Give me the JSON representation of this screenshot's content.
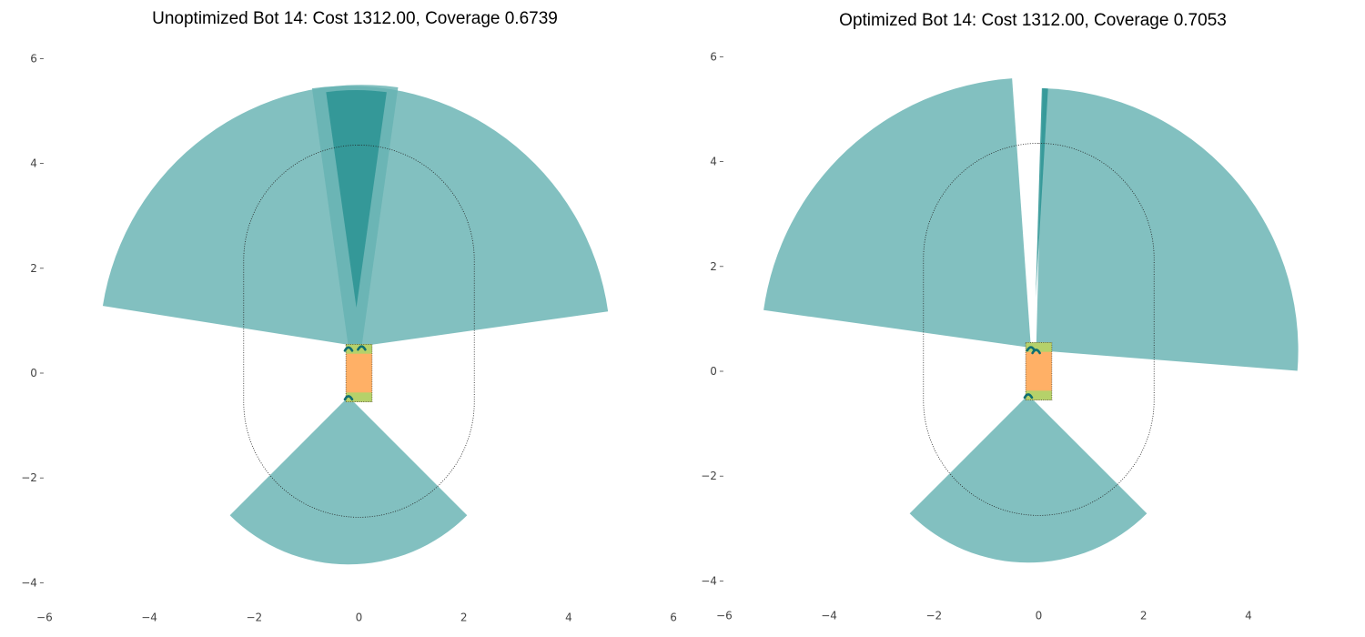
{
  "colors": {
    "sensor_fill": "#66b2b2",
    "sensor_overlap": "#2a9393",
    "body_fill": "#ffb066",
    "end_fill": "#b5d16a",
    "marker": "#0f6e72",
    "outline": "#222222",
    "tick_text": "#444444"
  },
  "chart_data": [
    {
      "type": "sensor-coverage-map",
      "title": "Unoptimized Bot 14: Cost 1312.00, Coverage 0.6739",
      "xlim": [
        -6,
        6
      ],
      "ylim": [
        -4.3,
        6.3
      ],
      "xticks": [
        -6,
        -4,
        -2,
        0,
        2,
        4,
        6
      ],
      "yticks": [
        -4,
        -2,
        0,
        2,
        4,
        6
      ],
      "tick_labels_x": [
        "−6",
        "−4",
        "−2",
        "0",
        "2",
        "4",
        "6"
      ],
      "tick_labels_y": [
        "−4",
        "−2",
        "0",
        "2",
        "4",
        "6"
      ],
      "grid": false,
      "boundary": {
        "shape": "stadium",
        "x_min": -2.2,
        "x_max": 2.2,
        "y_min": -2.75,
        "y_max": 4.35
      },
      "robot": {
        "x_min": -0.25,
        "x_max": 0.25,
        "y_min": -0.55,
        "y_max": 0.55,
        "end_band": 0.18
      },
      "sensors": [
        {
          "origin": [
            -0.2,
            0.48
          ],
          "radius": 5.0,
          "start_deg": 8,
          "end_deg": 98
        },
        {
          "origin": [
            0.05,
            0.5
          ],
          "radius": 5.0,
          "start_deg": 82,
          "end_deg": 171
        },
        {
          "origin": [
            -0.2,
            -0.45
          ],
          "radius": 3.2,
          "start_deg": 225,
          "end_deg": 315
        }
      ],
      "overlaps": [
        {
          "origin": [
            -0.05,
            1.25
          ],
          "radius": 4.15,
          "start_deg": 82,
          "end_deg": 98
        }
      ]
    },
    {
      "type": "sensor-coverage-map",
      "title": "Optimized Bot 14: Cost 1312.00, Coverage 0.7053",
      "xlim": [
        -6,
        5
      ],
      "ylim": [
        -4.3,
        6.3
      ],
      "xticks": [
        -6,
        -4,
        -2,
        0,
        2,
        4
      ],
      "yticks": [
        -4,
        -2,
        0,
        2,
        4,
        6
      ],
      "tick_labels_x": [
        "−6",
        "−4",
        "−2",
        "0",
        "2",
        "4"
      ],
      "tick_labels_y": [
        "−4",
        "−2",
        "0",
        "2",
        "4",
        "6"
      ],
      "grid": false,
      "boundary": {
        "shape": "stadium",
        "x_min": -2.2,
        "x_max": 2.2,
        "y_min": -2.75,
        "y_max": 4.35
      },
      "robot": {
        "x_min": -0.25,
        "x_max": 0.25,
        "y_min": -0.55,
        "y_max": 0.55,
        "end_band": 0.18
      },
      "sensors": [
        {
          "origin": [
            -0.15,
            0.45
          ],
          "radius": 5.15,
          "start_deg": 94,
          "end_deg": 172
        },
        {
          "origin": [
            -0.05,
            0.4
          ],
          "radius": 5.0,
          "start_deg": -4.5,
          "end_deg": 88.5
        },
        {
          "origin": [
            -0.2,
            -0.45
          ],
          "radius": 3.2,
          "start_deg": 225,
          "end_deg": 315
        }
      ],
      "overlaps": [
        {
          "origin": [
            -0.06,
            1.4
          ],
          "radius": 4.0,
          "start_deg": 86.6,
          "end_deg": 88.3
        }
      ]
    }
  ]
}
